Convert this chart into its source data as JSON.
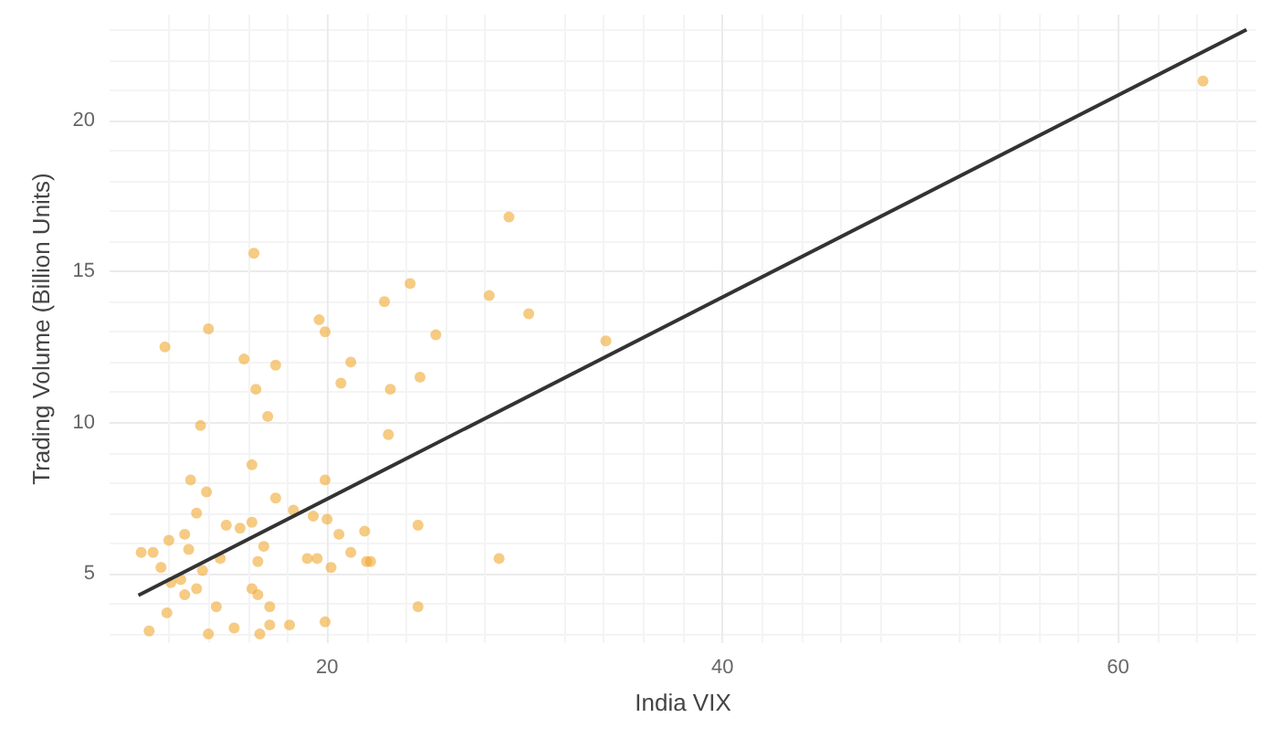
{
  "chart_data": {
    "type": "scatter",
    "xlabel": "India VIX",
    "ylabel": "Trading Volume (Billion Units)",
    "xlim": [
      9,
      67
    ],
    "ylim": [
      2.7,
      23.5
    ],
    "xticks": [
      20,
      40,
      60
    ],
    "yticks": [
      5,
      10,
      15,
      20
    ],
    "grid": true,
    "marker": "circle",
    "series": [
      {
        "color": "#f0a830",
        "x": [
          64.3,
          16.3,
          29.2,
          24.2,
          22.9,
          28.2,
          30.2,
          19.6,
          19.9,
          25.5,
          21.2,
          20.7,
          24.7,
          23.2,
          23.1,
          34.1,
          19.9,
          20,
          20.6,
          21.9,
          24.6,
          21.2,
          22.0,
          19.5,
          20.2,
          28.7,
          24.6,
          19.9,
          11.8,
          14.0,
          15.8,
          17.4,
          16.4,
          17.0,
          13.6,
          16.2,
          13.1,
          13.9,
          13.4,
          17.4,
          10.6,
          12.0,
          12.8,
          13.0,
          14.9,
          15.6,
          16.2,
          16.8,
          16.5,
          14.6,
          13.7,
          12.1,
          12.8,
          13.4,
          11.9,
          11.0,
          14.4,
          15.3,
          14.0,
          16.2,
          16.5,
          17.1,
          17.1,
          16.6,
          18.1,
          19.0,
          11.2,
          11.6,
          12.6,
          19.3,
          18.3,
          22.2
        ],
        "values": [
          21.3,
          15.6,
          16.8,
          14.6,
          14.0,
          14.2,
          13.6,
          13.4,
          13.0,
          12.9,
          12.0,
          11.3,
          11.5,
          11.1,
          9.6,
          12.7,
          8.1,
          6.8,
          6.3,
          6.4,
          6.6,
          5.7,
          5.4,
          5.5,
          5.2,
          5.5,
          3.9,
          3.4,
          12.5,
          13.1,
          12.1,
          11.9,
          11.1,
          10.2,
          9.9,
          8.6,
          8.1,
          7.7,
          7.0,
          7.5,
          5.7,
          6.1,
          6.3,
          5.8,
          6.6,
          6.5,
          6.7,
          5.9,
          5.4,
          5.5,
          5.1,
          4.7,
          4.3,
          4.5,
          3.7,
          3.1,
          3.9,
          3.2,
          3.0,
          4.5,
          4.3,
          3.9,
          3.3,
          3.0,
          3.3,
          5.5,
          5.7,
          5.2,
          4.8,
          6.9,
          7.1,
          5.4
        ]
      },
      {
        "type": "line",
        "color": "#333333",
        "x": [
          10.46,
          66.5
        ],
        "values": [
          4.28,
          23.0
        ],
        "marker": "none"
      }
    ]
  }
}
